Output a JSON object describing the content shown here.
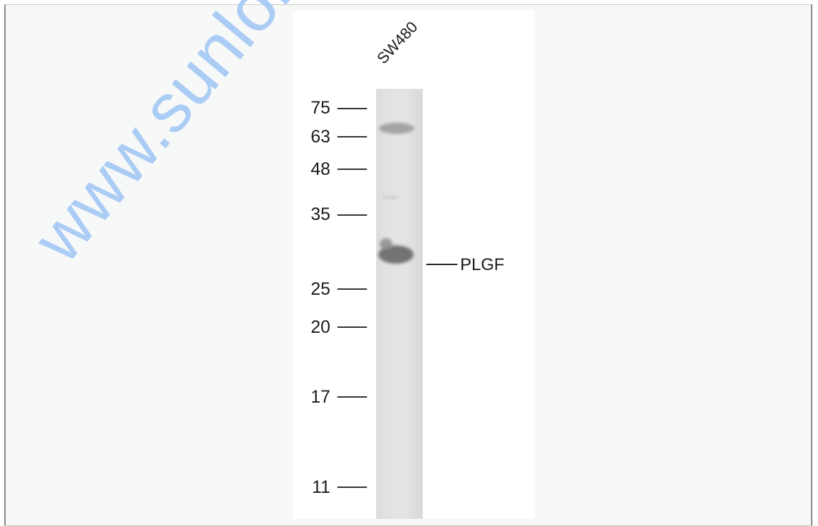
{
  "image": {
    "lane_label": "SW480",
    "markers": [
      {
        "label": "75",
        "kda": 75
      },
      {
        "label": "63",
        "kda": 63
      },
      {
        "label": "48",
        "kda": 48
      },
      {
        "label": "35",
        "kda": 35
      },
      {
        "label": "25",
        "kda": 25
      },
      {
        "label": "20",
        "kda": 20
      },
      {
        "label": "17",
        "kda": 17
      },
      {
        "label": "11",
        "kda": 11
      }
    ],
    "target_label": "PLGF",
    "watermark": "www.sunlongbiotech.com"
  },
  "colors": {
    "frame_background": "#f7f8f8",
    "watermark": "#9ec5f4",
    "text": "#1a1a1a"
  }
}
